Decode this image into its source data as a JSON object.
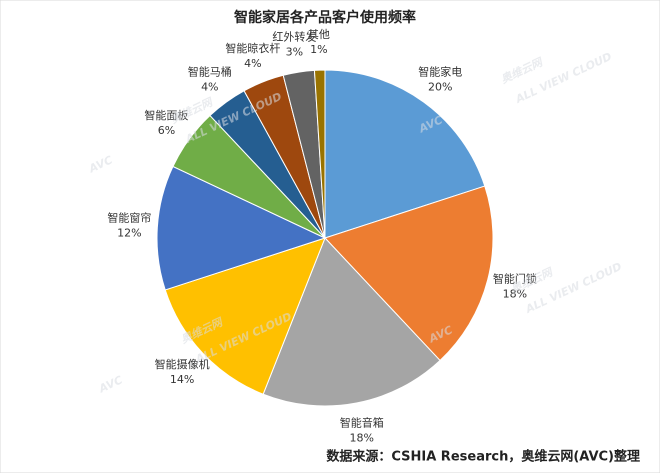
{
  "chart_data": {
    "type": "pie",
    "title": "智能家居各产品客户使用频率",
    "categories": [
      "智能家电",
      "智能门锁",
      "智能音箱",
      "智能摄像机",
      "智能窗帘",
      "智能面板",
      "智能马桶",
      "智能晾衣杆",
      "红外转发",
      "其他"
    ],
    "values": [
      20,
      18,
      18,
      14,
      12,
      6,
      4,
      4,
      3,
      1
    ],
    "value_labels": [
      "20%",
      "18%",
      "18%",
      "14%",
      "12%",
      "6%",
      "4%",
      "4%",
      "3%",
      "1%"
    ],
    "colors": [
      "#5b9bd5",
      "#ed7d31",
      "#a5a5a5",
      "#ffc000",
      "#4472c4",
      "#70ad47",
      "#255e91",
      "#9e480e",
      "#636363",
      "#997300"
    ],
    "source": "数据来源：CSHIA Research，奥维云网(AVC)整理",
    "watermark": [
      "AVC",
      "奥维云网",
      "ALL VIEW CLOUD"
    ]
  }
}
